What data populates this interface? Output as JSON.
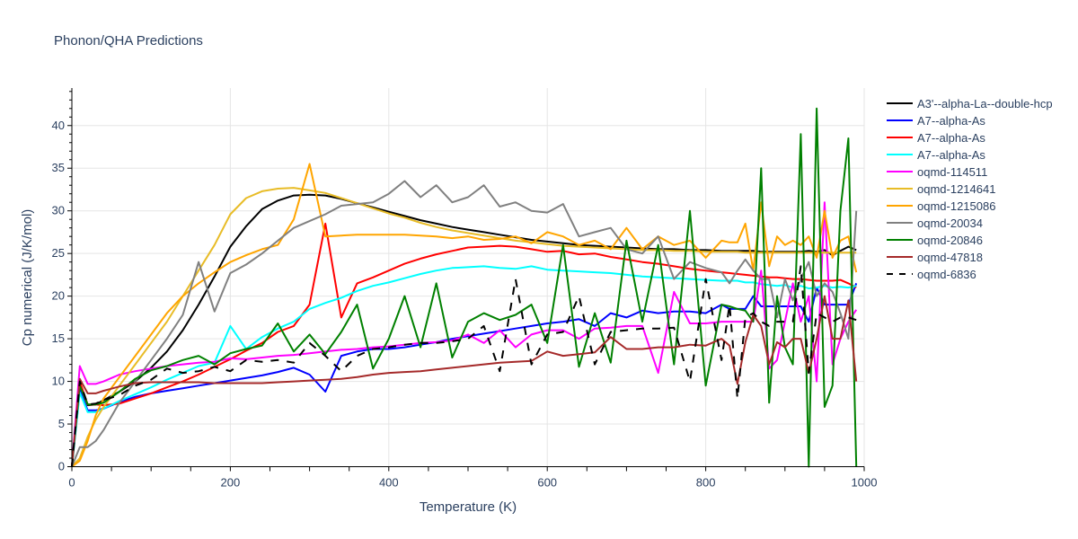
{
  "chart_data": {
    "type": "line",
    "title": "Phonon/QHA Predictions",
    "xlabel": "Temperature (K)",
    "ylabel": "Cp numerical (J/K/mol)",
    "xlim": [
      0,
      1000
    ],
    "ylim": [
      0,
      44.4
    ],
    "xticks": [
      0,
      200,
      400,
      600,
      800,
      1000
    ],
    "yticks": [
      0,
      5,
      10,
      15,
      20,
      25,
      30,
      35,
      40
    ],
    "grid": true,
    "legend_position": "right",
    "x": [
      0,
      10,
      20,
      30,
      40,
      60,
      80,
      100,
      120,
      140,
      160,
      180,
      200,
      220,
      240,
      260,
      280,
      300,
      320,
      340,
      360,
      380,
      400,
      420,
      440,
      460,
      480,
      500,
      520,
      540,
      560,
      580,
      600,
      620,
      640,
      660,
      680,
      700,
      720,
      740,
      760,
      780,
      800,
      820,
      830,
      840,
      850,
      860,
      870,
      880,
      890,
      900,
      910,
      920,
      930,
      940,
      950,
      960,
      970,
      980,
      990
    ],
    "series": [
      {
        "name": "A3'--alpha-La--double-hcp",
        "color": "#000000",
        "dash": "solid",
        "values": [
          0,
          9.8,
          7.2,
          7.3,
          7.8,
          8.8,
          10,
          11.6,
          13.5,
          16,
          19,
          22.3,
          25.8,
          28.2,
          30.2,
          31.2,
          31.8,
          31.9,
          31.8,
          31.4,
          30.9,
          30.4,
          29.9,
          29.4,
          28.9,
          28.5,
          28.1,
          27.8,
          27.5,
          27.2,
          26.9,
          26.6,
          26.4,
          26.2,
          26.0,
          25.9,
          25.8,
          25.7,
          25.6,
          25.5,
          25.5,
          25.4,
          25.4,
          25.3,
          25.3,
          25.3,
          25.3,
          25.3,
          25.2,
          25.2,
          25.2,
          25.2,
          25.2,
          25.2,
          25.3,
          25.2,
          25.4,
          24.8,
          25.3,
          25.8,
          25.4
        ]
      },
      {
        "name": "A7--alpha-As",
        "color": "#0000ff",
        "dash": "solid",
        "values": [
          0,
          9,
          6.6,
          6.6,
          6.8,
          7.6,
          8.2,
          8.6,
          8.9,
          9.2,
          9.5,
          9.8,
          10.1,
          10.4,
          10.7,
          11.1,
          11.6,
          10.8,
          8.8,
          13,
          13.5,
          13.8,
          13.8,
          14,
          14.3,
          14.6,
          15,
          15.3,
          15.6,
          15.9,
          16.2,
          16.5,
          16.8,
          17,
          17.3,
          16.5,
          18,
          17.5,
          18.3,
          18,
          18.2,
          18.2,
          18,
          19,
          18.5,
          18.5,
          18.5,
          20,
          18.8,
          18.8,
          18.8,
          18.8,
          18.8,
          18.8,
          17,
          21,
          19,
          19,
          19,
          19,
          21.5
        ]
      },
      {
        "name": "A7--alpha-As",
        "color": "#ff0000",
        "dash": "solid",
        "values": [
          0,
          10,
          7.3,
          7.3,
          7.2,
          7.4,
          8,
          8.6,
          9.3,
          10,
          10.8,
          11.7,
          12.6,
          13.6,
          14.5,
          15.8,
          16.5,
          19,
          28.5,
          17.5,
          21.5,
          22.2,
          23,
          23.8,
          24.4,
          24.9,
          25.3,
          25.7,
          25.8,
          25.9,
          25.8,
          25.5,
          25.2,
          25.3,
          24.9,
          25,
          24.6,
          24.3,
          24,
          23.8,
          23.5,
          23.2,
          23,
          22.8,
          22.7,
          22.6,
          22.5,
          22.4,
          22.3,
          22.2,
          22.2,
          22.1,
          22,
          22,
          21.9,
          21.8,
          21.8,
          21.8,
          21.9,
          21.5,
          21
        ]
      },
      {
        "name": "A7--alpha-As",
        "color": "#00ffff",
        "dash": "solid",
        "values": [
          0,
          8.7,
          6.4,
          6.4,
          6.8,
          7.7,
          8.5,
          9.3,
          10.2,
          11,
          11.8,
          12.2,
          16.5,
          13.8,
          15.2,
          16.2,
          17,
          18.5,
          19.2,
          19.8,
          20.6,
          21.2,
          21.6,
          22.1,
          22.6,
          23,
          23.3,
          23.4,
          23.5,
          23.3,
          23.2,
          23.5,
          23.1,
          23,
          22.9,
          22.8,
          22.7,
          22.5,
          22.3,
          22.2,
          22.1,
          22,
          21.9,
          21.8,
          21.8,
          21.8,
          21.6,
          21.6,
          21.4,
          21.3,
          21.2,
          21.3,
          21,
          21.2,
          20.9,
          21,
          21.2,
          21,
          21.1,
          21,
          21.2
        ]
      },
      {
        "name": "oqmd-114511",
        "color": "#ff00ff",
        "dash": "solid",
        "values": [
          0,
          11.8,
          9.7,
          9.7,
          10,
          10.8,
          11.2,
          11.5,
          11.8,
          12,
          12.2,
          12.3,
          12.7,
          12.6,
          12.8,
          13,
          13.1,
          13.3,
          13.5,
          13.7,
          13.8,
          14,
          14.1,
          14.3,
          14.5,
          14.6,
          14.8,
          15.5,
          14.5,
          16,
          14,
          15.5,
          16,
          16,
          15,
          16.2,
          16.3,
          16.5,
          16.5,
          11,
          20.5,
          16.8,
          16.8,
          17,
          17,
          17,
          17,
          17,
          23,
          11.5,
          12.5,
          17,
          21.5,
          17,
          20,
          10,
          31,
          12,
          15,
          17,
          18.4
        ]
      },
      {
        "name": "oqmd-1214641",
        "color": "#e8bc27",
        "dash": "solid",
        "values": [
          0,
          1,
          3.5,
          5.5,
          7,
          9.5,
          12,
          14.5,
          17,
          20,
          23,
          26,
          29.6,
          31.5,
          32.3,
          32.6,
          32.7,
          32.4,
          32.1,
          31.5,
          30.9,
          30.3,
          29.7,
          29.2,
          28.6,
          28.1,
          27.7,
          27.4,
          27.1,
          26.8,
          26.5,
          26.3,
          26.1,
          25.9,
          25.8,
          25.7,
          25.6,
          25.5,
          25.4,
          25.4,
          25.3,
          25.3,
          25.2,
          25.2,
          25.2,
          25.2,
          25.1,
          25.1,
          25.1,
          25.1,
          25.1,
          25.1,
          25.1,
          25.1,
          25.1,
          25.1,
          25.1,
          25.1,
          25.1,
          25.1,
          25.1
        ]
      },
      {
        "name": "oqmd-1215086",
        "color": "#ffa500",
        "dash": "solid",
        "values": [
          0,
          0.7,
          3,
          6,
          8,
          10.5,
          13,
          15.5,
          18,
          20,
          21.5,
          22.8,
          24,
          24.8,
          25.5,
          26,
          29,
          35.5,
          27,
          27.1,
          27.2,
          27.2,
          27.2,
          27.2,
          27.1,
          27,
          26.8,
          27,
          26.6,
          26.7,
          27,
          26.2,
          27.5,
          27,
          26,
          26.5,
          25.5,
          28,
          25.5,
          27,
          26,
          26.5,
          24.5,
          26.5,
          26.3,
          26.3,
          28.5,
          23,
          31,
          23.5,
          27,
          26,
          26.5,
          26,
          27,
          24.5,
          30,
          24.5,
          26.5,
          27,
          22.8
        ]
      },
      {
        "name": "oqmd-20034",
        "color": "#808080",
        "dash": "solid",
        "values": [
          0,
          2.3,
          2.3,
          3,
          4.3,
          7.5,
          10,
          12.5,
          15,
          17.8,
          24,
          18.2,
          22.7,
          23.7,
          25,
          26.5,
          28,
          28.8,
          29.6,
          30.6,
          30.8,
          31,
          32,
          33.5,
          31.6,
          33,
          31,
          31.6,
          33,
          30.5,
          31,
          30,
          29.8,
          30.8,
          27,
          27.5,
          28,
          25.5,
          25,
          27,
          22,
          24,
          23.3,
          22.8,
          21.5,
          23,
          24.3,
          23,
          22,
          22,
          17.5,
          22,
          19.5,
          22,
          24,
          20,
          21.5,
          20.5,
          18,
          15,
          30
        ]
      },
      {
        "name": "oqmd-20846",
        "color": "#008000",
        "dash": "solid",
        "values": [
          0,
          9.5,
          7.3,
          7.3,
          7.5,
          8.8,
          10.3,
          11.3,
          11.8,
          12.5,
          13,
          12,
          13.3,
          13.8,
          14.2,
          16.8,
          13.5,
          15.5,
          13.2,
          15.8,
          19,
          11.5,
          15,
          20,
          14,
          21.5,
          12.8,
          17,
          18,
          17.2,
          17.8,
          19,
          14.5,
          26,
          11.7,
          18,
          12.2,
          26.5,
          17,
          26,
          12,
          30,
          9.5,
          19,
          18.8,
          18.5,
          18.3,
          17,
          35,
          7.5,
          20,
          14,
          12,
          39,
          0,
          42,
          7,
          9.5,
          30,
          38.5,
          0
        ]
      },
      {
        "name": "oqmd-47818",
        "color": "#a52a2a",
        "dash": "solid",
        "values": [
          0,
          10.3,
          8.6,
          8.6,
          8.9,
          9.4,
          9.8,
          9.9,
          9.9,
          9.9,
          9.9,
          9.8,
          9.8,
          9.8,
          9.8,
          9.9,
          10,
          10.1,
          10.2,
          10.3,
          10.5,
          10.8,
          11,
          11.1,
          11.2,
          11.4,
          11.6,
          11.8,
          12,
          12.2,
          12.3,
          12.4,
          13.5,
          13,
          13.2,
          13.4,
          15.2,
          13.8,
          13.8,
          14,
          14,
          14.3,
          14.2,
          15,
          14.2,
          9.7,
          14.6,
          17.8,
          16.5,
          12,
          14.6,
          14,
          15,
          15,
          11,
          15,
          20,
          15,
          15,
          19.5,
          10
        ]
      },
      {
        "name": "oqmd-6836",
        "color": "#000000",
        "dash": "dash",
        "values": [
          0,
          10,
          7.3,
          7.4,
          7.8,
          8.4,
          9.5,
          10.2,
          11.5,
          11,
          11.2,
          11.7,
          11.2,
          12.5,
          12.3,
          12.5,
          12.2,
          14.5,
          13,
          11.2,
          13,
          13.8,
          14,
          14.3,
          14.5,
          14.5,
          14.7,
          15,
          16.5,
          11.2,
          22,
          12,
          15.5,
          15.8,
          20,
          12,
          15.8,
          16,
          16.2,
          16.2,
          16.3,
          10,
          22,
          12.5,
          19,
          8,
          17.5,
          18,
          17,
          16.5,
          17,
          17,
          17,
          23.5,
          11,
          18,
          17.5,
          17,
          17.5,
          17.5,
          17.2
        ]
      }
    ]
  }
}
